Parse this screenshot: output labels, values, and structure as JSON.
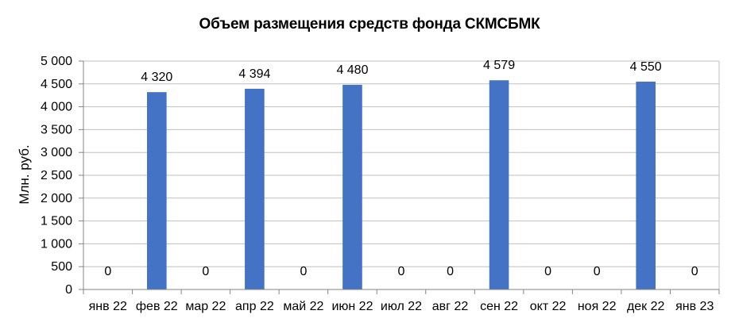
{
  "chart_data": {
    "type": "bar",
    "title": "Объем размещения средств фонда СКМСБМК",
    "ylabel": "Млн. руб.",
    "xlabel": "",
    "categories": [
      "янв 22",
      "фев 22",
      "мар 22",
      "апр 22",
      "май 22",
      "июн 22",
      "июл 22",
      "авг 22",
      "сен 22",
      "окт 22",
      "ноя 22",
      "дек 22",
      "янв 23"
    ],
    "values": [
      0,
      4320,
      0,
      4394,
      0,
      4480,
      0,
      0,
      4579,
      0,
      0,
      4550,
      0
    ],
    "data_labels": [
      "0",
      "4 320",
      "0",
      "4 394",
      "0",
      "4 480",
      "0",
      "0",
      "4 579",
      "0",
      "0",
      "4 550",
      "0"
    ],
    "ylim": [
      0,
      5000
    ],
    "y_ticks": [
      0,
      500,
      1000,
      1500,
      2000,
      2500,
      3000,
      3500,
      4000,
      4500,
      5000
    ],
    "y_tick_labels": [
      "0",
      "500",
      "1 000",
      "1 500",
      "2 000",
      "2 500",
      "3 000",
      "3 500",
      "4 000",
      "4 500",
      "5 000"
    ],
    "grid": true,
    "legend": "none",
    "bar_color": "#4472C4",
    "grid_color": "#BFBFBF"
  }
}
